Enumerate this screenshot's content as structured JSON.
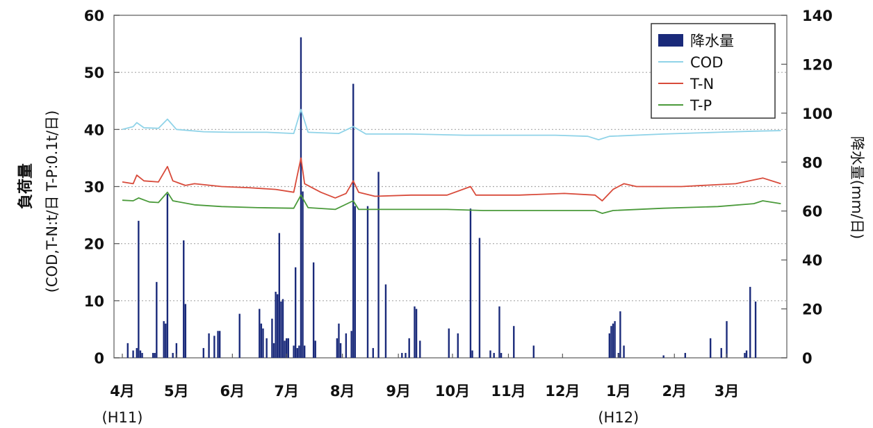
{
  "chart_data": {
    "type": "bar+line",
    "title": "",
    "left_axis": {
      "title_line1": "負荷量",
      "title_line2": "(COD,T-N:t/日 T-P:0.1t/日)",
      "range": [
        0,
        60
      ],
      "ticks": [
        0,
        10,
        20,
        30,
        40,
        50,
        60
      ]
    },
    "right_axis": {
      "title": "降水量(mm/日)",
      "range": [
        0,
        140
      ],
      "ticks": [
        0,
        20,
        40,
        60,
        80,
        100,
        120,
        140
      ]
    },
    "x_axis": {
      "days": 366,
      "months": [
        {
          "label": "4月",
          "start_day": 0
        },
        {
          "label": "5月",
          "start_day": 30
        },
        {
          "label": "6月",
          "start_day": 61
        },
        {
          "label": "7月",
          "start_day": 91
        },
        {
          "label": "8月",
          "start_day": 122
        },
        {
          "label": "9月",
          "start_day": 153
        },
        {
          "label": "10月",
          "start_day": 183
        },
        {
          "label": "11月",
          "start_day": 214
        },
        {
          "label": "12月",
          "start_day": 244
        },
        {
          "label": "1月",
          "start_day": 275
        },
        {
          "label": "2月",
          "start_day": 306
        },
        {
          "label": "3月",
          "start_day": 335
        }
      ],
      "era_labels": [
        {
          "label": "(H11)",
          "day": 0
        },
        {
          "label": "(H12)",
          "day": 275
        }
      ]
    },
    "gridlines_left": [
      10,
      20,
      30,
      40,
      50
    ],
    "legend": {
      "position": "top-right",
      "items": [
        {
          "name": "降水量",
          "kind": "bar",
          "color": "#1a2a7a"
        },
        {
          "name": "COD",
          "kind": "line",
          "color": "#8fd3e8"
        },
        {
          "name": "T-N",
          "kind": "line",
          "color": "#d84a3a"
        },
        {
          "name": "T-P",
          "kind": "line",
          "color": "#4a9a3a"
        }
      ]
    },
    "rain_colors": {
      "bar": "#1a2a7a",
      "highlight": "#5aa0d8"
    },
    "rain_series": {
      "name": "降水量",
      "axis": "right",
      "points": [
        {
          "day": 3,
          "value": 6
        },
        {
          "day": 6,
          "value": 3
        },
        {
          "day": 8,
          "value": 4
        },
        {
          "day": 9,
          "value": 56
        },
        {
          "day": 10,
          "value": 3
        },
        {
          "day": 11,
          "value": 2
        },
        {
          "day": 17,
          "value": 2
        },
        {
          "day": 18,
          "value": 2
        },
        {
          "day": 19,
          "value": 31
        },
        {
          "day": 23,
          "value": 15
        },
        {
          "day": 24,
          "value": 14
        },
        {
          "day": 25,
          "value": 67
        },
        {
          "day": 28,
          "value": 2
        },
        {
          "day": 30,
          "value": 6
        },
        {
          "day": 34,
          "value": 48
        },
        {
          "day": 35,
          "value": 22
        },
        {
          "day": 45,
          "value": 4
        },
        {
          "day": 48,
          "value": 10
        },
        {
          "day": 51,
          "value": 9
        },
        {
          "day": 53,
          "value": 11
        },
        {
          "day": 54,
          "value": 11
        },
        {
          "day": 65,
          "value": 18
        },
        {
          "day": 76,
          "value": 20
        },
        {
          "day": 77,
          "value": 14
        },
        {
          "day": 78,
          "value": 12
        },
        {
          "day": 80,
          "value": 8
        },
        {
          "day": 83,
          "value": 16
        },
        {
          "day": 84,
          "value": 6
        },
        {
          "day": 85,
          "value": 27
        },
        {
          "day": 86,
          "value": 26
        },
        {
          "day": 87,
          "value": 51
        },
        {
          "day": 88,
          "value": 23
        },
        {
          "day": 89,
          "value": 24
        },
        {
          "day": 90,
          "value": 7
        },
        {
          "day": 91,
          "value": 8
        },
        {
          "day": 92,
          "value": 8
        },
        {
          "day": 95,
          "value": 5
        },
        {
          "day": 96,
          "value": 37
        },
        {
          "day": 97,
          "value": 4
        },
        {
          "day": 98,
          "value": 5
        },
        {
          "day": 99,
          "value": 131
        },
        {
          "day": 100,
          "value": 68
        },
        {
          "day": 101,
          "value": 5
        },
        {
          "day": 106,
          "value": 39
        },
        {
          "day": 107,
          "value": 7
        },
        {
          "day": 119,
          "value": 8
        },
        {
          "day": 120,
          "value": 14
        },
        {
          "day": 121,
          "value": 6
        },
        {
          "day": 124,
          "value": 10
        },
        {
          "day": 127,
          "value": 11
        },
        {
          "day": 128,
          "value": 112
        },
        {
          "day": 129,
          "value": 62
        },
        {
          "day": 136,
          "value": 62
        },
        {
          "day": 139,
          "value": 4
        },
        {
          "day": 142,
          "value": 76
        },
        {
          "day": 146,
          "value": 30
        },
        {
          "day": 155,
          "value": 2
        },
        {
          "day": 157,
          "value": 2
        },
        {
          "day": 159,
          "value": 8
        },
        {
          "day": 162,
          "value": 21
        },
        {
          "day": 163,
          "value": 20
        },
        {
          "day": 165,
          "value": 7
        },
        {
          "day": 181,
          "value": 12
        },
        {
          "day": 186,
          "value": 10
        },
        {
          "day": 193,
          "value": 61
        },
        {
          "day": 194,
          "value": 3
        },
        {
          "day": 198,
          "value": 49
        },
        {
          "day": 204,
          "value": 3
        },
        {
          "day": 206,
          "value": 2
        },
        {
          "day": 209,
          "value": 21
        },
        {
          "day": 210,
          "value": 2
        },
        {
          "day": 217,
          "value": 13
        },
        {
          "day": 228,
          "value": 5
        },
        {
          "day": 270,
          "value": 10
        },
        {
          "day": 271,
          "value": 13
        },
        {
          "day": 272,
          "value": 14
        },
        {
          "day": 273,
          "value": 15
        },
        {
          "day": 275,
          "value": 2
        },
        {
          "day": 276,
          "value": 19
        },
        {
          "day": 278,
          "value": 5
        },
        {
          "day": 300,
          "value": 1
        },
        {
          "day": 312,
          "value": 2
        },
        {
          "day": 326,
          "value": 8
        },
        {
          "day": 332,
          "value": 4
        },
        {
          "day": 335,
          "value": 15
        },
        {
          "day": 345,
          "value": 2
        },
        {
          "day": 346,
          "value": 3
        },
        {
          "day": 348,
          "value": 29
        },
        {
          "day": 351,
          "value": 23
        }
      ]
    },
    "series": [
      {
        "name": "COD",
        "axis": "left",
        "points": [
          {
            "day": 0,
            "value": 40.0
          },
          {
            "day": 6,
            "value": 40.5
          },
          {
            "day": 8,
            "value": 41.2
          },
          {
            "day": 12,
            "value": 40.3
          },
          {
            "day": 20,
            "value": 40.2
          },
          {
            "day": 25,
            "value": 41.8
          },
          {
            "day": 30,
            "value": 40.0
          },
          {
            "day": 45,
            "value": 39.6
          },
          {
            "day": 60,
            "value": 39.5
          },
          {
            "day": 80,
            "value": 39.5
          },
          {
            "day": 95,
            "value": 39.3
          },
          {
            "day": 99,
            "value": 43.5
          },
          {
            "day": 103,
            "value": 39.5
          },
          {
            "day": 120,
            "value": 39.3
          },
          {
            "day": 128,
            "value": 40.5
          },
          {
            "day": 135,
            "value": 39.2
          },
          {
            "day": 160,
            "value": 39.2
          },
          {
            "day": 190,
            "value": 39.0
          },
          {
            "day": 215,
            "value": 39.0
          },
          {
            "day": 240,
            "value": 39.0
          },
          {
            "day": 258,
            "value": 38.8
          },
          {
            "day": 264,
            "value": 38.2
          },
          {
            "day": 270,
            "value": 38.8
          },
          {
            "day": 300,
            "value": 39.2
          },
          {
            "day": 330,
            "value": 39.5
          },
          {
            "day": 350,
            "value": 39.7
          },
          {
            "day": 365,
            "value": 39.8
          }
        ]
      },
      {
        "name": "T-N",
        "axis": "left",
        "points": [
          {
            "day": 0,
            "value": 30.8
          },
          {
            "day": 6,
            "value": 30.5
          },
          {
            "day": 8,
            "value": 32.0
          },
          {
            "day": 12,
            "value": 31.0
          },
          {
            "day": 20,
            "value": 30.8
          },
          {
            "day": 25,
            "value": 33.5
          },
          {
            "day": 28,
            "value": 31.0
          },
          {
            "day": 35,
            "value": 30.2
          },
          {
            "day": 40,
            "value": 30.5
          },
          {
            "day": 55,
            "value": 30.0
          },
          {
            "day": 70,
            "value": 29.8
          },
          {
            "day": 85,
            "value": 29.5
          },
          {
            "day": 95,
            "value": 29.0
          },
          {
            "day": 99,
            "value": 35.0
          },
          {
            "day": 101,
            "value": 30.5
          },
          {
            "day": 110,
            "value": 29.0
          },
          {
            "day": 118,
            "value": 28.0
          },
          {
            "day": 124,
            "value": 28.8
          },
          {
            "day": 128,
            "value": 31.0
          },
          {
            "day": 131,
            "value": 29.0
          },
          {
            "day": 140,
            "value": 28.3
          },
          {
            "day": 160,
            "value": 28.5
          },
          {
            "day": 180,
            "value": 28.5
          },
          {
            "day": 193,
            "value": 30.0
          },
          {
            "day": 196,
            "value": 28.5
          },
          {
            "day": 220,
            "value": 28.5
          },
          {
            "day": 245,
            "value": 28.8
          },
          {
            "day": 262,
            "value": 28.5
          },
          {
            "day": 266,
            "value": 27.5
          },
          {
            "day": 272,
            "value": 29.5
          },
          {
            "day": 278,
            "value": 30.5
          },
          {
            "day": 285,
            "value": 30.0
          },
          {
            "day": 310,
            "value": 30.0
          },
          {
            "day": 340,
            "value": 30.5
          },
          {
            "day": 355,
            "value": 31.5
          },
          {
            "day": 365,
            "value": 30.5
          }
        ]
      },
      {
        "name": "T-P",
        "axis": "left",
        "points": [
          {
            "day": 0,
            "value": 27.6
          },
          {
            "day": 6,
            "value": 27.5
          },
          {
            "day": 9,
            "value": 28.0
          },
          {
            "day": 15,
            "value": 27.3
          },
          {
            "day": 20,
            "value": 27.2
          },
          {
            "day": 25,
            "value": 29.0
          },
          {
            "day": 28,
            "value": 27.5
          },
          {
            "day": 40,
            "value": 26.8
          },
          {
            "day": 55,
            "value": 26.5
          },
          {
            "day": 75,
            "value": 26.3
          },
          {
            "day": 95,
            "value": 26.2
          },
          {
            "day": 99,
            "value": 28.5
          },
          {
            "day": 103,
            "value": 26.3
          },
          {
            "day": 118,
            "value": 26.0
          },
          {
            "day": 128,
            "value": 27.5
          },
          {
            "day": 131,
            "value": 26.0
          },
          {
            "day": 150,
            "value": 26.0
          },
          {
            "day": 180,
            "value": 26.0
          },
          {
            "day": 200,
            "value": 25.8
          },
          {
            "day": 230,
            "value": 25.8
          },
          {
            "day": 262,
            "value": 25.8
          },
          {
            "day": 266,
            "value": 25.3
          },
          {
            "day": 272,
            "value": 25.8
          },
          {
            "day": 300,
            "value": 26.2
          },
          {
            "day": 330,
            "value": 26.5
          },
          {
            "day": 350,
            "value": 27.0
          },
          {
            "day": 355,
            "value": 27.5
          },
          {
            "day": 365,
            "value": 27.0
          }
        ]
      }
    ]
  }
}
